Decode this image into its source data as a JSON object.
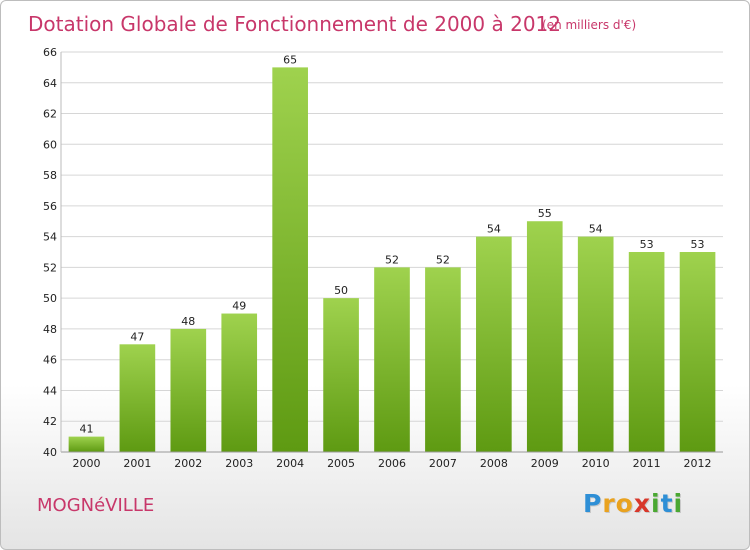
{
  "chart_data": {
    "type": "bar",
    "title": "Dotation Globale de Fonctionnement de 2000 à 2012",
    "subtitle": "(en milliers d'€)",
    "categories": [
      "2000",
      "2001",
      "2002",
      "2003",
      "2004",
      "2005",
      "2006",
      "2007",
      "2008",
      "2009",
      "2010",
      "2011",
      "2012"
    ],
    "values": [
      41,
      47,
      48,
      49,
      65,
      50,
      52,
      52,
      54,
      55,
      54,
      53,
      53
    ],
    "ylim": [
      40,
      66
    ],
    "yticks": [
      40,
      42,
      44,
      46,
      48,
      50,
      52,
      54,
      56,
      58,
      60,
      62,
      64,
      66
    ],
    "xlabel": "",
    "ylabel": "",
    "grid": true,
    "bar_color_top": "#9fd24e",
    "bar_color_bottom": "#5e9a12",
    "grid_color": "#d6d6d6",
    "title_color": "#c8376a"
  },
  "commune": "MOGNéVILLE",
  "logo": {
    "letters": [
      "P",
      "r",
      "o",
      "x",
      "i",
      "t",
      "i"
    ],
    "colors": [
      "#2e8fd6",
      "#e9a21f",
      "#e9a21f",
      "#d8372a",
      "#4aa832",
      "#2e8fd6",
      "#4aa832"
    ]
  }
}
